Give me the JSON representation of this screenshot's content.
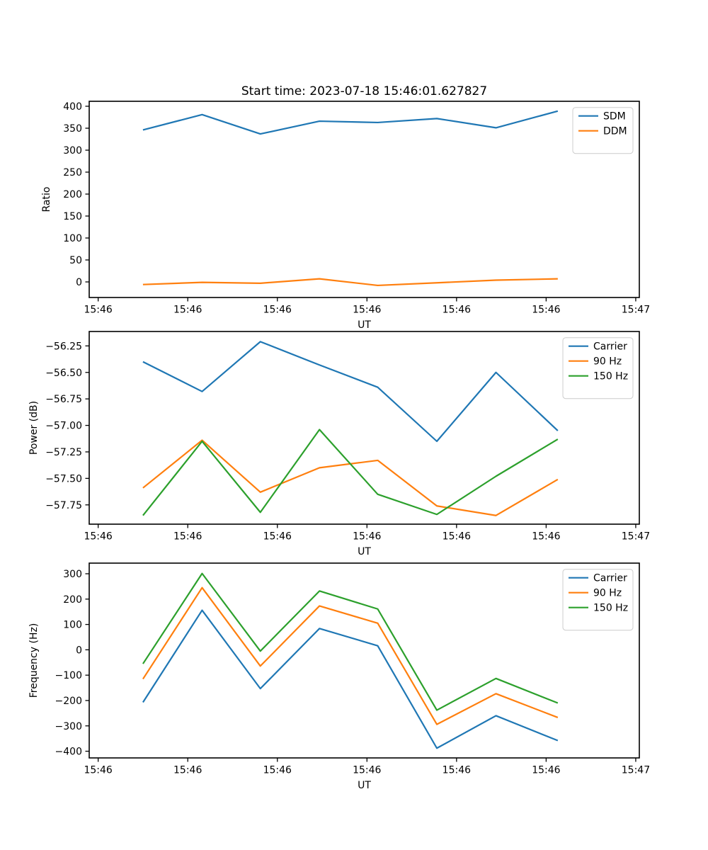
{
  "figure": {
    "title": "Start time: 2023-07-18 15:46:01.627827",
    "background": "#ffffff",
    "accent_colors": {
      "blue": "#1f77b4",
      "orange": "#ff7f0e",
      "green": "#2ca02c"
    }
  },
  "chart_data": [
    {
      "type": "line",
      "name": "ratio",
      "ylabel": "Ratio",
      "xlabel": "UT",
      "xlim": [
        -1.0,
        60.4
      ],
      "ylim": [
        -35.5,
        411.3
      ],
      "grid": false,
      "legend_position": "top-right",
      "xtick_seconds": [
        0,
        10,
        20,
        30,
        40,
        50,
        60
      ],
      "xtick_labels": [
        "15:46",
        "15:46",
        "15:46",
        "15:46",
        "15:46",
        "15:46",
        "15:47"
      ],
      "ytick_values": [
        0,
        50,
        100,
        150,
        200,
        250,
        300,
        350,
        400
      ],
      "ytick_labels": [
        "0",
        "50",
        "100",
        "150",
        "200",
        "250",
        "300",
        "350",
        "400"
      ],
      "x_seconds": [
        5.0,
        11.6,
        18.1,
        24.7,
        31.2,
        37.8,
        44.4,
        51.3
      ],
      "series": [
        {
          "name": "SDM",
          "color": "#1f77b4",
          "values": [
            346,
            381,
            337,
            366,
            363,
            372,
            351,
            389
          ]
        },
        {
          "name": "DDM",
          "color": "#ff7f0e",
          "values": [
            -6,
            -1,
            -3,
            7,
            -8,
            -2,
            4,
            7
          ]
        }
      ]
    },
    {
      "type": "line",
      "name": "power",
      "ylabel": "Power (dB)",
      "xlabel": "UT",
      "xlim": [
        -1.0,
        60.4
      ],
      "ylim": [
        -57.932,
        -56.114
      ],
      "grid": false,
      "legend_position": "top-right",
      "xtick_seconds": [
        0,
        10,
        20,
        30,
        40,
        50,
        60
      ],
      "xtick_labels": [
        "15:46",
        "15:46",
        "15:46",
        "15:46",
        "15:46",
        "15:46",
        "15:47"
      ],
      "ytick_values": [
        -56.25,
        -56.5,
        -56.75,
        -57.0,
        -57.25,
        -57.5,
        -57.75
      ],
      "ytick_labels": [
        "−56.25",
        "−56.50",
        "−56.75",
        "−57.00",
        "−57.25",
        "−57.50",
        "−57.75"
      ],
      "x_seconds": [
        5.0,
        11.6,
        18.1,
        24.7,
        31.2,
        37.8,
        44.4,
        51.3
      ],
      "series": [
        {
          "name": "Carrier",
          "color": "#1f77b4",
          "values": [
            -56.4,
            -56.68,
            -56.21,
            -56.43,
            -56.64,
            -57.15,
            -56.5,
            -57.05
          ]
        },
        {
          "name": "90 Hz",
          "color": "#ff7f0e",
          "values": [
            -57.59,
            -57.14,
            -57.63,
            -57.4,
            -57.33,
            -57.76,
            -57.85,
            -57.51
          ]
        },
        {
          "name": "150 Hz",
          "color": "#2ca02c",
          "values": [
            -57.85,
            -57.15,
            -57.82,
            -57.04,
            -57.65,
            -57.84,
            -57.48,
            -57.13
          ]
        }
      ]
    },
    {
      "type": "line",
      "name": "frequency",
      "ylabel": "Frequency (Hz)",
      "xlabel": "UT",
      "xlim": [
        -1.0,
        60.4
      ],
      "ylim": [
        -426.4,
        341.9
      ],
      "grid": false,
      "legend_position": "top-right",
      "xtick_seconds": [
        0,
        10,
        20,
        30,
        40,
        50,
        60
      ],
      "xtick_labels": [
        "15:46",
        "15:46",
        "15:46",
        "15:46",
        "15:46",
        "15:46",
        "15:47"
      ],
      "ytick_values": [
        300,
        200,
        100,
        0,
        -100,
        -200,
        -300,
        -400
      ],
      "ytick_labels": [
        "300",
        "200",
        "100",
        "0",
        "−100",
        "−200",
        "−300",
        "−400"
      ],
      "x_seconds": [
        5.0,
        11.6,
        18.1,
        24.7,
        31.2,
        37.8,
        44.4,
        51.3
      ],
      "series": [
        {
          "name": "Carrier",
          "color": "#1f77b4",
          "values": [
            -207,
            156,
            -153,
            84,
            16,
            -388,
            -260,
            -358
          ]
        },
        {
          "name": "90 Hz",
          "color": "#ff7f0e",
          "values": [
            -115,
            245,
            -64,
            173,
            105,
            -294,
            -173,
            -267
          ]
        },
        {
          "name": "150 Hz",
          "color": "#2ca02c",
          "values": [
            -55,
            301,
            -5,
            232,
            161,
            -238,
            -113,
            -210
          ]
        }
      ]
    }
  ]
}
